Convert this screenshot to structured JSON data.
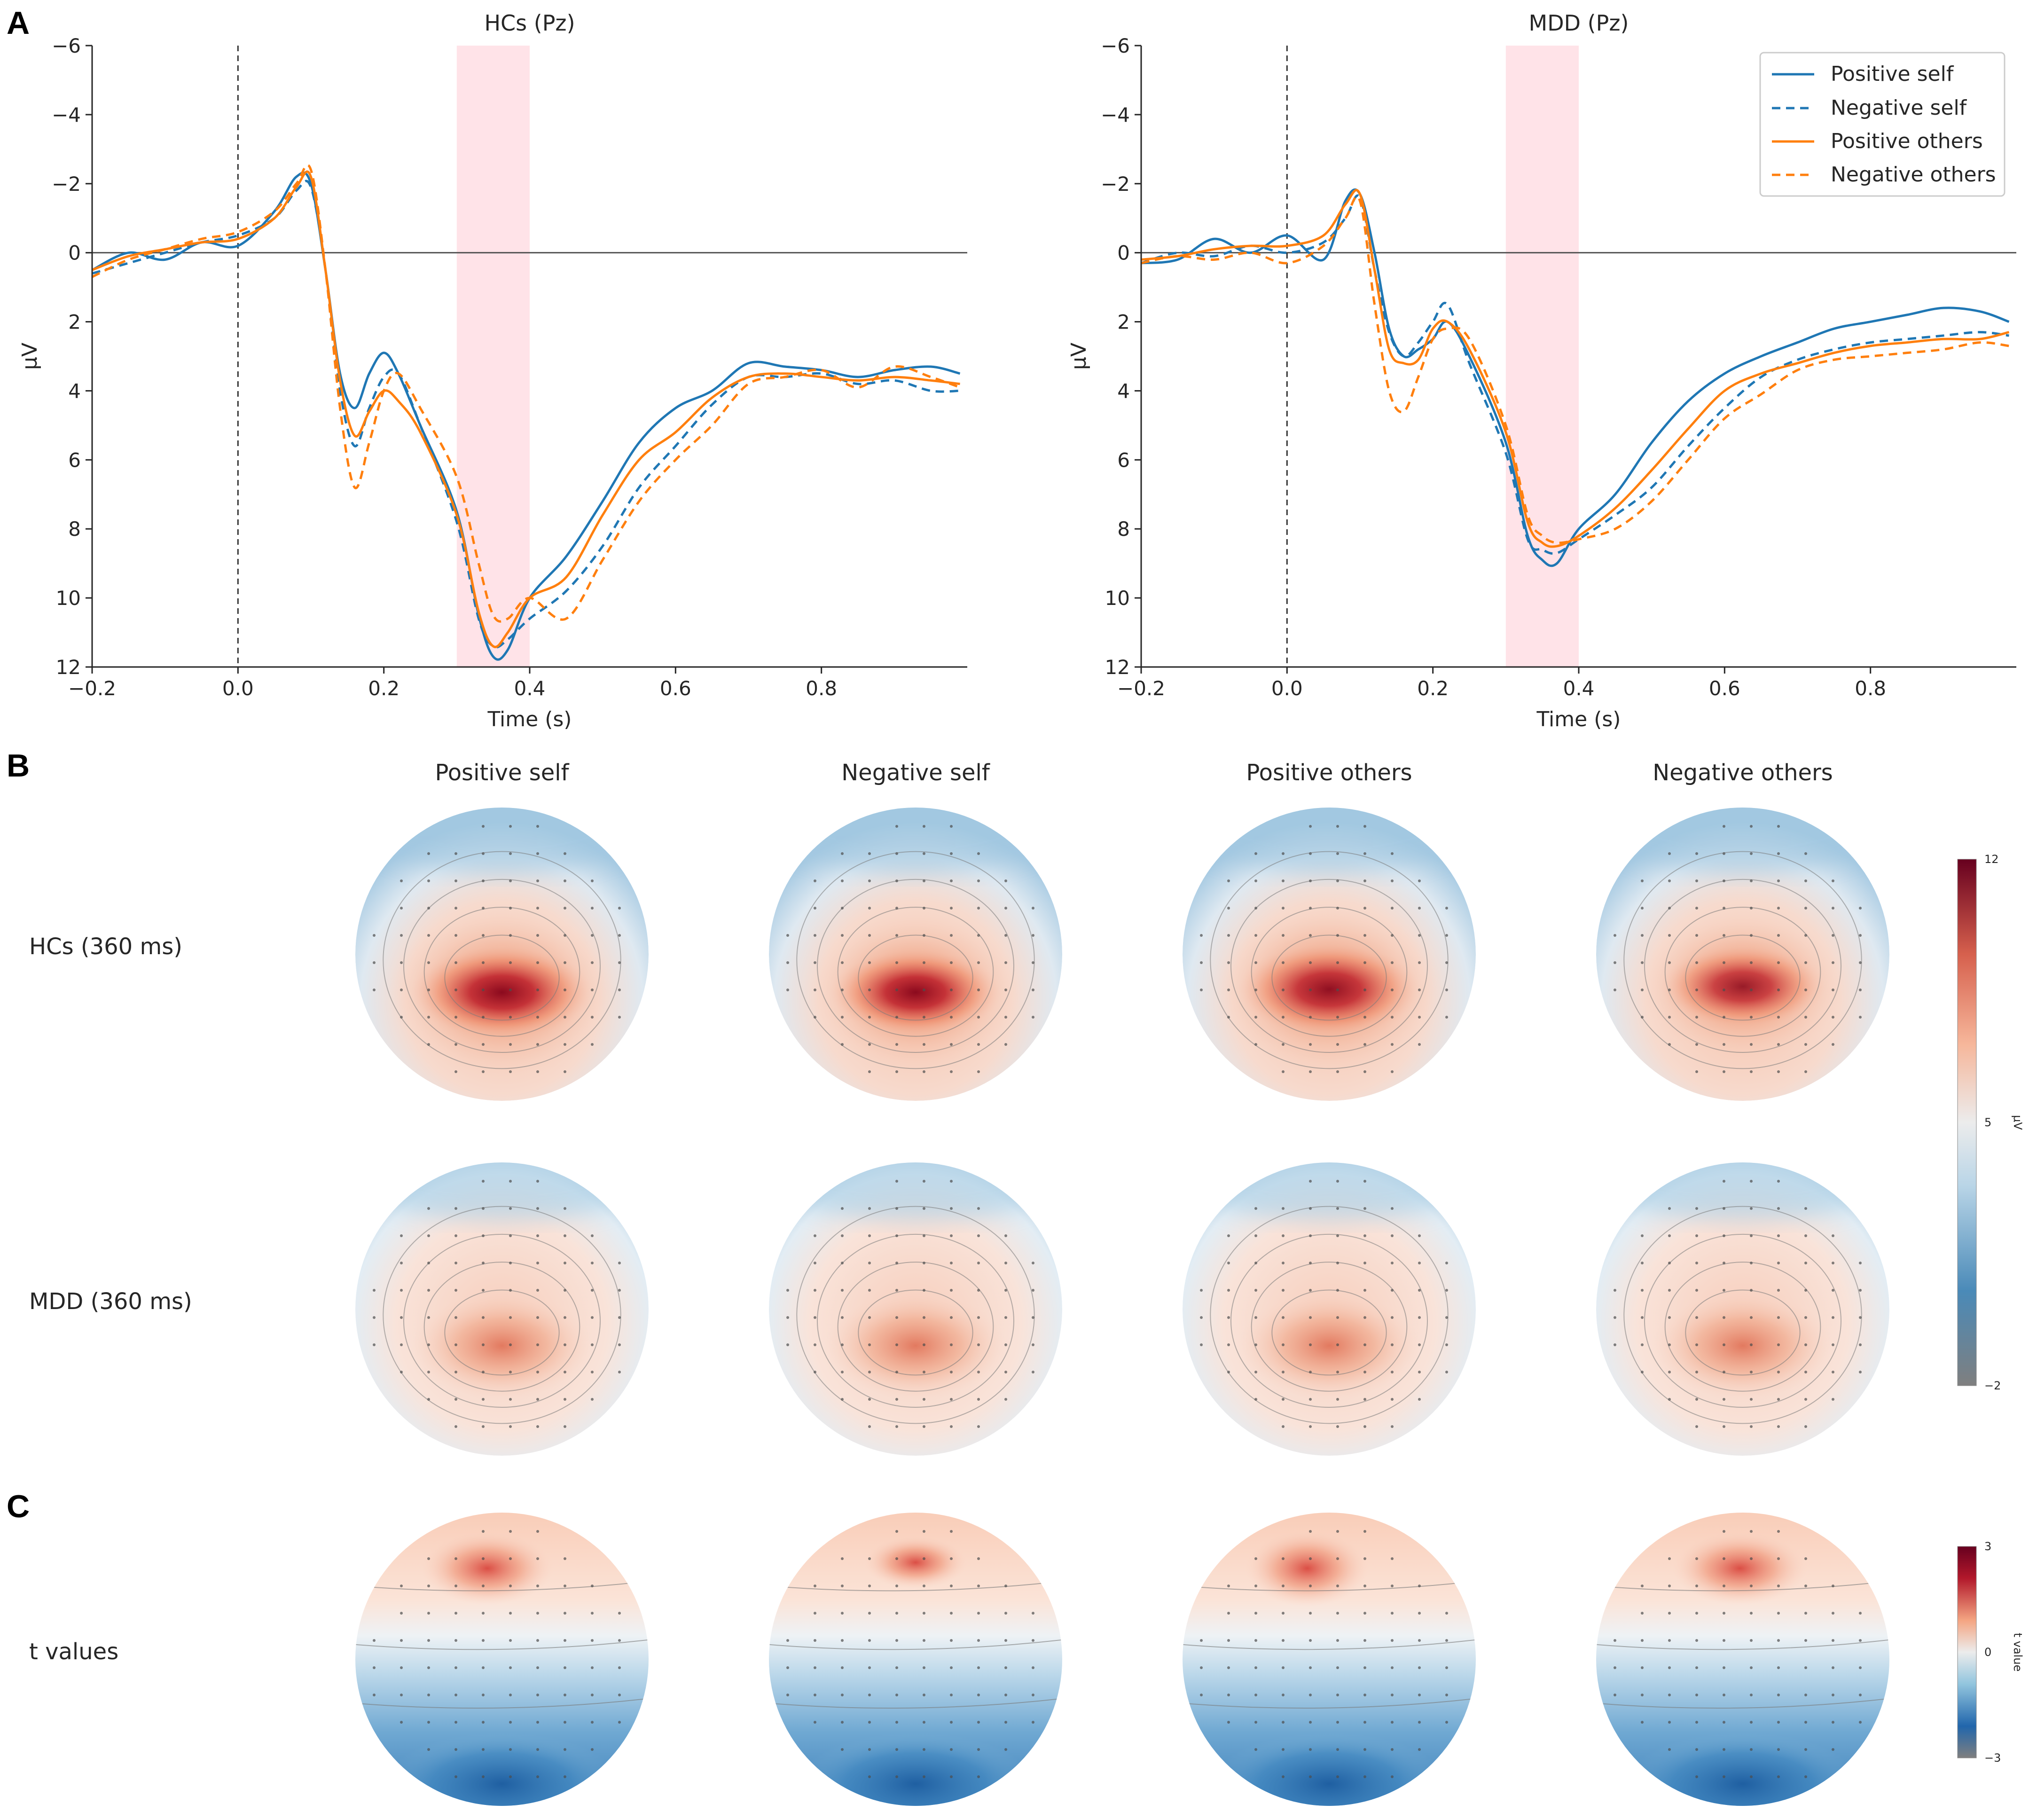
{
  "panel_letters": [
    "A",
    "B",
    "C"
  ],
  "colors": {
    "self": "#1f77b4",
    "others": "#ff7f0e",
    "highlight": "#ffc0cb",
    "cmap_low": "#7f7f7f",
    "cmap_mid": "#ececec",
    "cmap_high": "#67001f"
  },
  "chart_data": [
    {
      "type": "line",
      "title": "HCs (Pz)",
      "xlabel": "Time (s)",
      "ylabel": "μV",
      "xlim": [
        -0.2,
        1.0
      ],
      "ylim": [
        12,
        -6
      ],
      "y_inverted": true,
      "xticks": [
        -0.2,
        0.0,
        0.2,
        0.4,
        0.6,
        0.8
      ],
      "xtick_labels": [
        "−0.2",
        "0.0",
        "0.2",
        "0.4",
        "0.6",
        "0.8"
      ],
      "yticks": [
        -6,
        -4,
        -2,
        0,
        2,
        4,
        6,
        8,
        10,
        12
      ],
      "ytick_labels": [
        "−6",
        "−4",
        "−2",
        "0",
        "2",
        "4",
        "6",
        "8",
        "10",
        "12"
      ],
      "highlight_window": [
        0.3,
        0.4
      ],
      "stimulus_onset": 0.0,
      "x": [
        -0.2,
        -0.15,
        -0.1,
        -0.05,
        0.0,
        0.05,
        0.08,
        0.1,
        0.12,
        0.14,
        0.16,
        0.18,
        0.2,
        0.22,
        0.25,
        0.3,
        0.33,
        0.35,
        0.37,
        0.4,
        0.45,
        0.5,
        0.55,
        0.6,
        0.65,
        0.7,
        0.75,
        0.8,
        0.85,
        0.9,
        0.95,
        0.99
      ],
      "series": [
        {
          "name": "Positive self",
          "color": "#1f77b4",
          "dash": "solid",
          "values": [
            0.5,
            0.0,
            0.2,
            -0.3,
            -0.2,
            -1.2,
            -2.2,
            -2.0,
            0.5,
            3.5,
            4.5,
            3.5,
            2.9,
            3.5,
            5.0,
            7.5,
            10.5,
            11.7,
            11.5,
            10.0,
            8.8,
            7.2,
            5.5,
            4.5,
            4.0,
            3.2,
            3.3,
            3.4,
            3.6,
            3.4,
            3.3,
            3.5
          ]
        },
        {
          "name": "Negative self",
          "color": "#1f77b4",
          "dash": "dashed",
          "values": [
            0.6,
            0.3,
            0.0,
            -0.3,
            -0.5,
            -1.0,
            -1.8,
            -1.9,
            0.5,
            4.0,
            5.6,
            4.5,
            3.6,
            3.5,
            5.0,
            7.8,
            10.6,
            11.4,
            11.2,
            10.6,
            9.8,
            8.5,
            6.8,
            5.6,
            4.4,
            3.6,
            3.6,
            3.5,
            3.8,
            3.7,
            4.0,
            4.0
          ]
        },
        {
          "name": "Positive others",
          "color": "#ff7f0e",
          "dash": "solid",
          "values": [
            0.5,
            0.1,
            -0.1,
            -0.3,
            -0.4,
            -1.0,
            -1.9,
            -2.2,
            0.5,
            3.7,
            5.3,
            4.6,
            4.0,
            4.3,
            5.2,
            7.6,
            10.4,
            11.4,
            11.0,
            10.0,
            9.4,
            7.6,
            6.0,
            5.2,
            4.2,
            3.6,
            3.5,
            3.6,
            3.7,
            3.6,
            3.7,
            3.8
          ]
        },
        {
          "name": "Negative others",
          "color": "#ff7f0e",
          "dash": "dashed",
          "values": [
            0.7,
            0.2,
            -0.1,
            -0.4,
            -0.6,
            -1.2,
            -2.0,
            -2.4,
            0.5,
            4.5,
            6.8,
            5.5,
            4.0,
            3.5,
            4.5,
            6.5,
            9.0,
            10.5,
            10.6,
            10.0,
            10.6,
            8.9,
            7.2,
            6.0,
            5.0,
            3.8,
            3.6,
            3.4,
            3.9,
            3.3,
            3.6,
            3.9
          ]
        }
      ]
    },
    {
      "type": "line",
      "title": "MDD (Pz)",
      "xlabel": "Time (s)",
      "ylabel": "μV",
      "xlim": [
        -0.2,
        1.0
      ],
      "ylim": [
        12,
        -6
      ],
      "y_inverted": true,
      "xticks": [
        -0.2,
        0.0,
        0.2,
        0.4,
        0.6,
        0.8
      ],
      "xtick_labels": [
        "−0.2",
        "0.0",
        "0.2",
        "0.4",
        "0.6",
        "0.8"
      ],
      "yticks": [
        -6,
        -4,
        -2,
        0,
        2,
        4,
        6,
        8,
        10,
        12
      ],
      "ytick_labels": [
        "−6",
        "−4",
        "−2",
        "0",
        "2",
        "4",
        "6",
        "8",
        "10",
        "12"
      ],
      "highlight_window": [
        0.3,
        0.4
      ],
      "stimulus_onset": 0.0,
      "legend_position": "top-right",
      "x": [
        -0.2,
        -0.15,
        -0.1,
        -0.05,
        0.0,
        0.05,
        0.08,
        0.1,
        0.12,
        0.14,
        0.16,
        0.18,
        0.2,
        0.22,
        0.25,
        0.3,
        0.33,
        0.35,
        0.37,
        0.4,
        0.45,
        0.5,
        0.55,
        0.6,
        0.65,
        0.7,
        0.75,
        0.8,
        0.85,
        0.9,
        0.95,
        0.99
      ],
      "series": [
        {
          "name": "Positive self",
          "color": "#1f77b4",
          "dash": "solid",
          "values": [
            0.3,
            0.2,
            -0.4,
            0.0,
            -0.5,
            0.2,
            -1.5,
            -1.7,
            0.0,
            2.2,
            3.0,
            2.8,
            2.5,
            2.0,
            3.0,
            5.5,
            8.2,
            8.9,
            9.0,
            8.0,
            7.0,
            5.5,
            4.3,
            3.5,
            3.0,
            2.6,
            2.2,
            2.0,
            1.8,
            1.6,
            1.7,
            2.0
          ]
        },
        {
          "name": "Negative self",
          "color": "#1f77b4",
          "dash": "dashed",
          "values": [
            0.3,
            0.0,
            0.1,
            -0.2,
            0.0,
            -0.3,
            -1.0,
            -1.6,
            0.5,
            2.3,
            3.0,
            2.6,
            2.0,
            1.5,
            3.2,
            5.8,
            8.3,
            8.6,
            8.7,
            8.3,
            7.6,
            6.8,
            5.6,
            4.5,
            3.6,
            3.1,
            2.8,
            2.6,
            2.5,
            2.4,
            2.3,
            2.4
          ]
        },
        {
          "name": "Positive others",
          "color": "#ff7f0e",
          "dash": "solid",
          "values": [
            0.2,
            0.1,
            -0.1,
            -0.2,
            -0.2,
            -0.5,
            -1.4,
            -1.7,
            0.5,
            2.8,
            3.2,
            3.1,
            2.2,
            2.0,
            2.8,
            5.2,
            7.8,
            8.4,
            8.5,
            8.2,
            7.4,
            6.3,
            5.1,
            4.0,
            3.5,
            3.2,
            2.9,
            2.7,
            2.6,
            2.5,
            2.5,
            2.3
          ]
        },
        {
          "name": "Negative others",
          "color": "#ff7f0e",
          "dash": "dashed",
          "values": [
            0.3,
            0.1,
            0.2,
            0.0,
            0.3,
            -0.2,
            -1.0,
            -1.5,
            1.5,
            4.0,
            4.6,
            3.6,
            2.5,
            2.2,
            2.5,
            5.0,
            7.6,
            8.2,
            8.4,
            8.3,
            8.0,
            7.2,
            6.0,
            4.8,
            4.1,
            3.4,
            3.1,
            3.0,
            2.9,
            2.8,
            2.6,
            2.7
          ]
        }
      ]
    }
  ],
  "topomaps": {
    "column_titles": [
      "Positive self",
      "Negative self",
      "Positive others",
      "Negative others"
    ],
    "row_labels": [
      "HCs (360 ms)",
      "MDD (360 ms)",
      "t values"
    ],
    "colorbars": [
      {
        "label": "μV",
        "max_label": "12",
        "mid_label": "5",
        "min_label": "−2",
        "min": -2,
        "mid": 5,
        "max": 12
      },
      {
        "label": "t value",
        "max_label": "3",
        "mid_label": "0",
        "min_label": "−3",
        "min": -3,
        "mid": 0,
        "max": 3
      }
    ]
  }
}
